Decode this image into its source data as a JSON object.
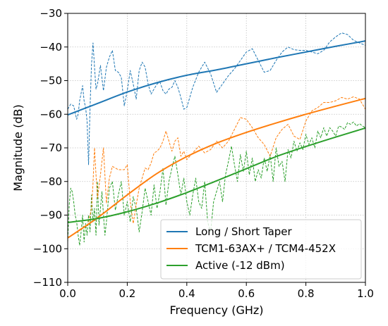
{
  "chart_data": {
    "type": "line",
    "title": "",
    "xlabel": "Frequency (GHz)",
    "ylabel": "Magnitude (dB)",
    "xlim": [
      0.0,
      1.0
    ],
    "ylim": [
      -110,
      -30
    ],
    "xticks": [
      0.0,
      0.2,
      0.4,
      0.6,
      0.8,
      1.0
    ],
    "xtick_labels": [
      "0.0",
      "0.2",
      "0.4",
      "0.6",
      "0.8",
      "1.0"
    ],
    "yticks": [
      -110,
      -100,
      -90,
      -80,
      -70,
      -60,
      -50,
      -40,
      -30
    ],
    "ytick_labels": [
      "−110",
      "−100",
      "−90",
      "−80",
      "−70",
      "−60",
      "−50",
      "−40",
      "−30"
    ],
    "grid": true,
    "legend_position": "lower-right",
    "series": [
      {
        "name": "Long / Short Taper",
        "color": "#1f77b4",
        "fit": {
          "x": [
            0.0,
            0.1,
            0.2,
            0.3,
            0.4,
            0.5,
            0.6,
            0.7,
            0.8,
            0.9,
            1.0
          ],
          "y": [
            -60.2,
            -56.8,
            -53.4,
            -50.6,
            -48.4,
            -46.8,
            -45.0,
            -43.2,
            -41.5,
            -39.8,
            -38.2
          ]
        },
        "measured": {
          "x": [
            0.0,
            0.01,
            0.02,
            0.03,
            0.035,
            0.04,
            0.05,
            0.055,
            0.06,
            0.065,
            0.07,
            0.075,
            0.08,
            0.085,
            0.09,
            0.095,
            0.1,
            0.11,
            0.12,
            0.13,
            0.14,
            0.15,
            0.16,
            0.17,
            0.18,
            0.19,
            0.2,
            0.21,
            0.22,
            0.23,
            0.24,
            0.25,
            0.26,
            0.27,
            0.28,
            0.29,
            0.3,
            0.31,
            0.32,
            0.33,
            0.34,
            0.35,
            0.36,
            0.37,
            0.38,
            0.39,
            0.4,
            0.42,
            0.44,
            0.46,
            0.48,
            0.5,
            0.52,
            0.54,
            0.56,
            0.58,
            0.6,
            0.62,
            0.64,
            0.66,
            0.68,
            0.7,
            0.72,
            0.74,
            0.76,
            0.78,
            0.8,
            0.82,
            0.84,
            0.86,
            0.88,
            0.9,
            0.92,
            0.94,
            0.96,
            0.98,
            1.0
          ],
          "y": [
            -58.5,
            -57.0,
            -57.5,
            -61.5,
            -60.0,
            -56.0,
            -51.5,
            -56.0,
            -58.0,
            -62.0,
            -75.0,
            -58.0,
            -45.0,
            -38.8,
            -46.0,
            -52.5,
            -51.0,
            -45.5,
            -53.0,
            -46.0,
            -43.0,
            -41.0,
            -47.0,
            -47.5,
            -49.0,
            -57.5,
            -53.0,
            -47.0,
            -51.0,
            -55.5,
            -47.0,
            -44.5,
            -46.0,
            -51.0,
            -54.0,
            -52.5,
            -51.0,
            -50.5,
            -53.0,
            -54.0,
            -52.5,
            -52.0,
            -50.0,
            -52.0,
            -55.0,
            -58.5,
            -58.0,
            -52.0,
            -47.5,
            -44.5,
            -48.0,
            -53.5,
            -51.0,
            -48.5,
            -46.5,
            -44.0,
            -41.5,
            -40.5,
            -44.0,
            -47.5,
            -47.0,
            -44.0,
            -41.5,
            -40.0,
            -40.8,
            -41.0,
            -41.0,
            -41.5,
            -42.0,
            -41.0,
            -38.5,
            -37.0,
            -35.8,
            -36.3,
            -38.0,
            -38.8,
            -39.5
          ]
        }
      },
      {
        "name": "TCM1-63AX+ / TCM4-452X",
        "color": "#ff7f0e",
        "fit": {
          "x": [
            0.0,
            0.1,
            0.2,
            0.3,
            0.4,
            0.5,
            0.6,
            0.7,
            0.8,
            0.9,
            1.0
          ],
          "y": [
            -96.8,
            -90.8,
            -84.0,
            -77.6,
            -72.6,
            -68.6,
            -65.4,
            -62.6,
            -60.0,
            -57.6,
            -55.3
          ]
        },
        "measured": {
          "x": [
            0.07,
            0.08,
            0.085,
            0.09,
            0.095,
            0.1,
            0.11,
            0.12,
            0.13,
            0.14,
            0.15,
            0.16,
            0.17,
            0.18,
            0.19,
            0.2,
            0.21,
            0.22,
            0.23,
            0.24,
            0.25,
            0.26,
            0.27,
            0.28,
            0.29,
            0.3,
            0.31,
            0.32,
            0.33,
            0.34,
            0.35,
            0.36,
            0.37,
            0.38,
            0.39,
            0.4,
            0.42,
            0.44,
            0.46,
            0.48,
            0.5,
            0.52,
            0.54,
            0.56,
            0.58,
            0.6,
            0.62,
            0.64,
            0.66,
            0.68,
            0.7,
            0.72,
            0.74,
            0.76,
            0.78,
            0.8,
            0.82,
            0.84,
            0.86,
            0.88,
            0.9,
            0.92,
            0.94,
            0.96,
            0.98,
            1.0
          ],
          "y": [
            -92.0,
            -88.0,
            -80.5,
            -70.0,
            -78.0,
            -85.0,
            -78.0,
            -70.0,
            -86.5,
            -79.0,
            -75.5,
            -76.0,
            -76.5,
            -76.5,
            -76.5,
            -75.0,
            -86.0,
            -92.5,
            -87.0,
            -82.0,
            -79.0,
            -76.0,
            -76.5,
            -74.5,
            -71.5,
            -71.0,
            -70.0,
            -68.0,
            -65.0,
            -68.0,
            -71.0,
            -68.0,
            -67.0,
            -72.5,
            -71.0,
            -73.5,
            -71.5,
            -69.5,
            -71.5,
            -70.5,
            -68.0,
            -70.0,
            -68.0,
            -64.5,
            -61.0,
            -61.5,
            -64.0,
            -67.0,
            -69.0,
            -72.5,
            -67.0,
            -64.5,
            -63.0,
            -66.5,
            -67.5,
            -62.0,
            -59.0,
            -58.0,
            -56.5,
            -56.5,
            -56.0,
            -55.0,
            -55.5,
            -54.8,
            -55.5,
            -58.5
          ]
        }
      },
      {
        "name": "Active (-12 dBm)",
        "color": "#2ca02c",
        "fit": {
          "x": [
            0.0,
            0.1,
            0.2,
            0.3,
            0.4,
            0.5,
            0.6,
            0.7,
            0.8,
            0.9,
            1.0
          ],
          "y": [
            -92.2,
            -91.0,
            -89.0,
            -86.4,
            -83.3,
            -79.8,
            -76.2,
            -72.6,
            -69.6,
            -66.8,
            -64.1
          ]
        },
        "measured": {
          "x": [
            0.0,
            0.005,
            0.01,
            0.015,
            0.02,
            0.025,
            0.03,
            0.035,
            0.04,
            0.045,
            0.05,
            0.055,
            0.06,
            0.065,
            0.07,
            0.075,
            0.08,
            0.085,
            0.09,
            0.095,
            0.1,
            0.105,
            0.11,
            0.115,
            0.12,
            0.125,
            0.13,
            0.14,
            0.15,
            0.16,
            0.17,
            0.18,
            0.19,
            0.2,
            0.21,
            0.22,
            0.23,
            0.24,
            0.25,
            0.26,
            0.27,
            0.28,
            0.29,
            0.3,
            0.31,
            0.32,
            0.33,
            0.34,
            0.35,
            0.36,
            0.37,
            0.38,
            0.39,
            0.4,
            0.41,
            0.42,
            0.43,
            0.44,
            0.45,
            0.46,
            0.47,
            0.48,
            0.49,
            0.5,
            0.51,
            0.52,
            0.53,
            0.54,
            0.55,
            0.56,
            0.57,
            0.58,
            0.59,
            0.6,
            0.61,
            0.62,
            0.63,
            0.64,
            0.65,
            0.66,
            0.67,
            0.68,
            0.69,
            0.7,
            0.71,
            0.72,
            0.73,
            0.74,
            0.75,
            0.76,
            0.77,
            0.78,
            0.79,
            0.8,
            0.81,
            0.82,
            0.83,
            0.84,
            0.85,
            0.86,
            0.87,
            0.88,
            0.89,
            0.9,
            0.91,
            0.92,
            0.93,
            0.94,
            0.95,
            0.96,
            0.97,
            0.98,
            0.99,
            1.0
          ],
          "y": [
            -98.0,
            -87.0,
            -82.0,
            -83.0,
            -86.0,
            -90.0,
            -92.0,
            -96.0,
            -99.0,
            -95.0,
            -90.0,
            -98.0,
            -92.5,
            -96.0,
            -90.0,
            -95.0,
            -84.0,
            -92.0,
            -88.0,
            -96.0,
            -80.0,
            -93.0,
            -88.0,
            -83.0,
            -90.0,
            -96.0,
            -92.0,
            -82.0,
            -80.0,
            -88.5,
            -84.0,
            -80.0,
            -90.0,
            -86.0,
            -92.0,
            -84.5,
            -88.0,
            -95.0,
            -89.0,
            -82.0,
            -86.0,
            -90.0,
            -81.0,
            -88.0,
            -83.0,
            -76.0,
            -87.0,
            -80.0,
            -76.0,
            -72.5,
            -78.0,
            -84.0,
            -79.0,
            -86.0,
            -90.0,
            -84.0,
            -79.0,
            -86.0,
            -88.0,
            -80.0,
            -92.0,
            -95.0,
            -86.0,
            -83.0,
            -80.0,
            -86.0,
            -78.0,
            -74.0,
            -69.5,
            -75.0,
            -80.0,
            -72.0,
            -77.0,
            -71.0,
            -78.0,
            -73.0,
            -80.0,
            -76.5,
            -79.0,
            -73.0,
            -77.0,
            -72.0,
            -80.0,
            -70.0,
            -75.5,
            -74.0,
            -80.0,
            -70.5,
            -73.0,
            -68.0,
            -71.0,
            -68.5,
            -70.5,
            -66.0,
            -69.0,
            -67.0,
            -70.0,
            -65.0,
            -67.0,
            -64.0,
            -66.5,
            -64.0,
            -65.0,
            -66.5,
            -63.5,
            -63.8,
            -64.5,
            -62.5,
            -63.0,
            -62.3,
            -63.5,
            -62.8,
            -63.5,
            -64.0
          ]
        }
      }
    ]
  }
}
